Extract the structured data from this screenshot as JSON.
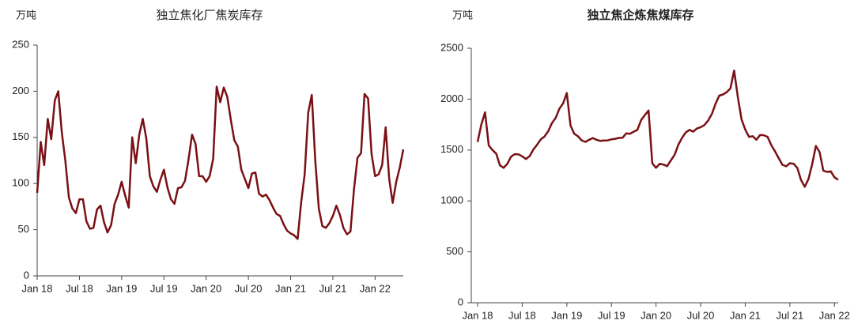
{
  "chart_data": [
    {
      "type": "line",
      "title": "独立焦化厂焦炭库存",
      "y_label": "万吨",
      "color": "#7a1014",
      "xlim": [
        0,
        104
      ],
      "ylim": [
        0,
        250
      ],
      "yticks": [
        0,
        50,
        100,
        150,
        200,
        250
      ],
      "xticks": [
        {
          "value": 0,
          "label": "Jan 18"
        },
        {
          "value": 12,
          "label": "Jul 18"
        },
        {
          "value": 24,
          "label": "Jan 19"
        },
        {
          "value": 36,
          "label": "Jul 19"
        },
        {
          "value": 48,
          "label": "Jan 20"
        },
        {
          "value": 60,
          "label": "Jul 20"
        },
        {
          "value": 72,
          "label": "Jan 21"
        },
        {
          "value": 84,
          "label": "Jul 21"
        },
        {
          "value": 96,
          "label": "Jan 22"
        }
      ],
      "values": [
        90,
        145,
        120,
        170,
        148,
        190,
        200,
        155,
        125,
        85,
        73,
        68,
        83,
        83,
        59,
        51,
        52,
        72,
        76,
        58,
        47,
        55,
        78,
        88,
        102,
        87,
        74,
        150,
        122,
        153,
        170,
        149,
        108,
        97,
        91,
        104,
        115,
        96,
        83,
        78,
        95,
        96,
        103,
        126,
        153,
        143,
        108,
        108,
        102,
        108,
        127,
        205,
        188,
        204,
        194,
        169,
        147,
        140,
        115,
        105,
        95,
        111,
        112,
        89,
        86,
        88,
        82,
        74,
        67,
        65,
        56,
        49,
        46,
        44,
        40,
        80,
        110,
        177,
        196,
        125,
        73,
        54,
        52,
        57,
        65,
        76,
        66,
        52,
        45,
        48,
        94,
        128,
        133,
        197,
        192,
        132,
        108,
        110,
        120,
        161,
        105,
        79,
        102,
        117,
        137
      ]
    },
    {
      "type": "line",
      "title": "独立焦企炼焦煤库存",
      "y_label": "万吨",
      "color": "#7a1014",
      "xlim": [
        -1.7,
        97
      ],
      "ylim": [
        0,
        2500
      ],
      "yticks": [
        0,
        500,
        1000,
        1500,
        2000,
        2500
      ],
      "xticks": [
        {
          "value": 0,
          "label": "Jan 18"
        },
        {
          "value": 12,
          "label": "Jul 18"
        },
        {
          "value": 24,
          "label": "Jan 19"
        },
        {
          "value": 36,
          "label": "Jul 19"
        },
        {
          "value": 48,
          "label": "Jan 20"
        },
        {
          "value": 60,
          "label": "Jul 20"
        },
        {
          "value": 72,
          "label": "Jan 21"
        },
        {
          "value": 84,
          "label": "Jul 21"
        },
        {
          "value": 96,
          "label": "Jan 22"
        }
      ],
      "values": [
        1580,
        1750,
        1870,
        1545,
        1500,
        1465,
        1350,
        1325,
        1365,
        1435,
        1460,
        1458,
        1438,
        1412,
        1440,
        1505,
        1552,
        1605,
        1633,
        1685,
        1765,
        1815,
        1905,
        1958,
        2060,
        1740,
        1660,
        1635,
        1595,
        1580,
        1600,
        1618,
        1600,
        1590,
        1594,
        1595,
        1605,
        1610,
        1619,
        1620,
        1664,
        1660,
        1680,
        1699,
        1794,
        1843,
        1888,
        1370,
        1325,
        1365,
        1357,
        1342,
        1398,
        1454,
        1553,
        1620,
        1674,
        1698,
        1680,
        1712,
        1724,
        1745,
        1789,
        1853,
        1954,
        2034,
        2046,
        2068,
        2105,
        2280,
        2020,
        1800,
        1700,
        1630,
        1636,
        1601,
        1648,
        1645,
        1630,
        1548,
        1487,
        1420,
        1355,
        1340,
        1370,
        1366,
        1325,
        1206,
        1139,
        1214,
        1360,
        1540,
        1480,
        1298,
        1285,
        1291,
        1232,
        1208
      ]
    }
  ]
}
